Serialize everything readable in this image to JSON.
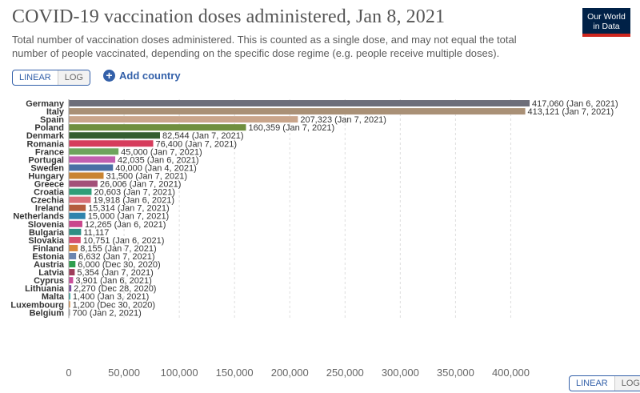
{
  "header": {
    "title": "COVID-19 vaccination doses administered, Jan 8, 2021",
    "subtitle": "Total number of vaccination doses administered. This is counted as a single dose, and may not equal the total number of people vaccinated, depending on the specific dose regime (e.g. people receive multiple doses).",
    "logo_line1": "Our World",
    "logo_line2": "in Data"
  },
  "controls": {
    "scale_linear": "LINEAR",
    "scale_log": "LOG",
    "add_country": "Add country",
    "add_icon": "plus-circle-icon"
  },
  "colors": {
    "accent": "#3360a9",
    "logo_bg": "#002147",
    "logo_bar": "#ce261e"
  },
  "chart_data": {
    "type": "bar",
    "orientation": "horizontal",
    "title": "COVID-19 vaccination doses administered, Jan 8, 2021",
    "xlim": [
      0,
      417060
    ],
    "xticks": [
      0,
      50000,
      100000,
      150000,
      200000,
      250000,
      300000,
      350000,
      400000
    ],
    "xtick_labels": [
      "0",
      "50,000",
      "100,000",
      "150,000",
      "200,000",
      "250,000",
      "300,000",
      "350,000",
      "400,000"
    ],
    "categories": [
      "Germany",
      "Italy",
      "Spain",
      "Poland",
      "Denmark",
      "Romania",
      "France",
      "Portugal",
      "Sweden",
      "Hungary",
      "Greece",
      "Croatia",
      "Czechia",
      "Ireland",
      "Netherlands",
      "Slovenia",
      "Bulgaria",
      "Slovakia",
      "Finland",
      "Estonia",
      "Austria",
      "Latvia",
      "Cyprus",
      "Lithuania",
      "Malta",
      "Luxembourg",
      "Belgium"
    ],
    "values": [
      417060,
      413121,
      207323,
      160359,
      82544,
      76400,
      45000,
      42035,
      40000,
      31500,
      26006,
      20603,
      19918,
      15314,
      15000,
      12265,
      11117,
      10751,
      8155,
      6632,
      6000,
      5354,
      3901,
      2270,
      1400,
      1200,
      700
    ],
    "value_labels": [
      "417,060 (Jan 6, 2021)",
      "413,121 (Jan 7, 2021)",
      "207,323 (Jan 7, 2021)",
      "160,359 (Jan 7, 2021)",
      "82,544 (Jan 7, 2021)",
      "76,400 (Jan 7, 2021)",
      "45,000 (Jan 7, 2021)",
      "42,035 (Jan 6, 2021)",
      "40,000 (Jan 4, 2021)",
      "31,500 (Jan 7, 2021)",
      "26,006 (Jan 7, 2021)",
      "20,603 (Jan 7, 2021)",
      "19,918 (Jan 6, 2021)",
      "15,314 (Jan 7, 2021)",
      "15,000 (Jan 7, 2021)",
      "12,265 (Jan 6, 2021)",
      "11,117",
      "10,751 (Jan 6, 2021)",
      "8,155 (Jan 7, 2021)",
      "6,632 (Jan 7, 2021)",
      "6,000 (Dec 30, 2020)",
      "5,354 (Jan 7, 2021)",
      "3,901 (Jan 6, 2021)",
      "2,270 (Dec 28, 2020)",
      "1,400 (Jan 3, 2021)",
      "1,200 (Dec 30, 2020)",
      "700 (Jan 2, 2021)"
    ],
    "colors": [
      "#6d6e7a",
      "#a99076",
      "#c9a58b",
      "#6f8f3e",
      "#355e2f",
      "#d63c5c",
      "#6ea45e",
      "#c25fb0",
      "#4a6fa5",
      "#c98432",
      "#a35079",
      "#2f9e78",
      "#d9707a",
      "#b45c3e",
      "#2f84ad",
      "#c9468c",
      "#2f8f84",
      "#d65070",
      "#d9873a",
      "#6c86b0",
      "#2f9e4e",
      "#9e3c5a",
      "#c94f9a",
      "#7a4fa0",
      "#2fa89e",
      "#d9873a",
      "#9e9e9e"
    ],
    "grid": true,
    "legend": "none"
  }
}
